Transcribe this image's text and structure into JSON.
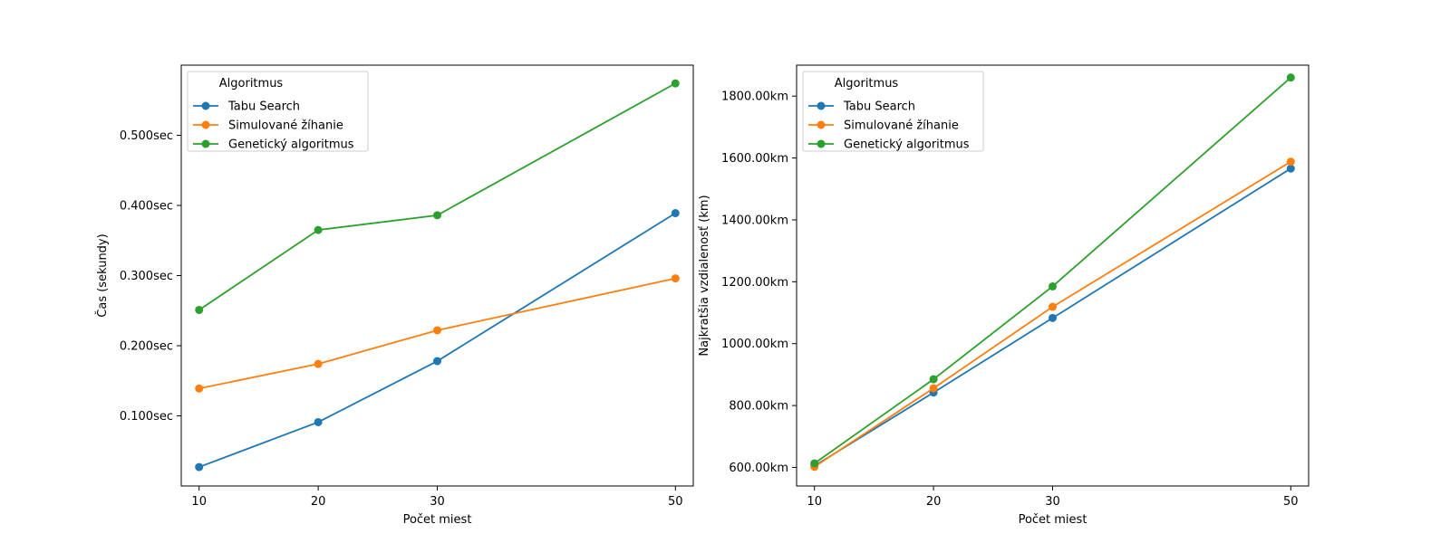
{
  "figure": {
    "background": "#ffffff"
  },
  "chart_data": [
    {
      "type": "line",
      "x": [
        10,
        20,
        30,
        50
      ],
      "x_tick_labels": [
        "10",
        "20",
        "30",
        "50"
      ],
      "xlabel": "Počet miest",
      "ylabel": "Čas (sekundy)",
      "ylim": [
        0.0,
        0.6
      ],
      "y_ticks": [
        0.1,
        0.2,
        0.3,
        0.4,
        0.5
      ],
      "y_tick_labels": [
        "0.100sec",
        "0.200sec",
        "0.300sec",
        "0.400sec",
        "0.500sec"
      ],
      "grid": false,
      "legend": {
        "title": "Algoritmus",
        "placement": "upper-left"
      },
      "series": [
        {
          "name": "Tabu Search",
          "color": "#1f77b4",
          "values": [
            0.027,
            0.091,
            0.178,
            0.389
          ]
        },
        {
          "name": "Simulované žíhanie",
          "color": "#ff7f0e",
          "values": [
            0.139,
            0.174,
            0.222,
            0.296
          ]
        },
        {
          "name": "Genetický algoritmus",
          "color": "#2ca02c",
          "values": [
            0.251,
            0.365,
            0.386,
            0.574
          ]
        }
      ]
    },
    {
      "type": "line",
      "x": [
        10,
        20,
        30,
        50
      ],
      "x_tick_labels": [
        "10",
        "20",
        "30",
        "50"
      ],
      "xlabel": "Počet miest",
      "ylabel": "Najkratšia vzdialenosť (km)",
      "ylim": [
        540,
        1900
      ],
      "y_ticks": [
        600,
        800,
        1000,
        1200,
        1400,
        1600,
        1800
      ],
      "y_tick_labels": [
        "600.00km",
        "800.00km",
        "1000.00km",
        "1200.00km",
        "1400.00km",
        "1600.00km",
        "1800.00km"
      ],
      "grid": false,
      "legend": {
        "title": "Algoritmus",
        "placement": "upper-left"
      },
      "series": [
        {
          "name": "Tabu Search",
          "color": "#1f77b4",
          "values": [
            605,
            842,
            1083,
            1566
          ]
        },
        {
          "name": "Simulované žíhanie",
          "color": "#ff7f0e",
          "values": [
            602,
            856,
            1119,
            1588
          ]
        },
        {
          "name": "Genetický algoritmus",
          "color": "#2ca02c",
          "values": [
            613,
            885,
            1185,
            1860
          ]
        }
      ]
    }
  ]
}
